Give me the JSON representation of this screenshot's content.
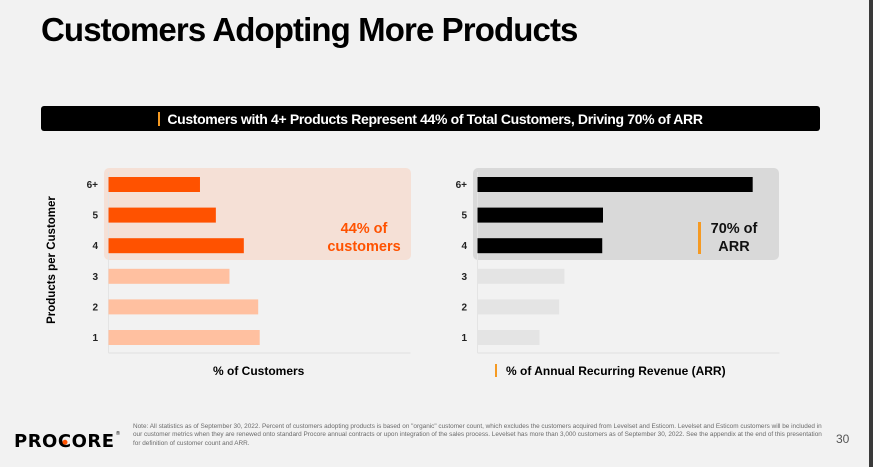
{
  "title": "Customers Adopting More Products",
  "banner": "Customers with 4+ Products Represent 44% of Total Customers, Driving 70% of ARR",
  "colors": {
    "orange": "#ff5200",
    "orange_light": "#ffc0a0",
    "orange_highlight_bg": "#f5e0d6",
    "black": "#000000",
    "gray_light": "#e4e4e4",
    "gray_highlight_bg": "#d9d9d9",
    "accent_yellow": "#f59a23"
  },
  "chart_data": [
    {
      "type": "bar",
      "orientation": "horizontal",
      "title": "% of Customers",
      "ylabel": "Products per Customer",
      "xlabel": "% of Customers",
      "categories": [
        "6+",
        "5",
        "4",
        "3",
        "2",
        "1"
      ],
      "values": [
        12.1,
        14.2,
        17.9,
        16.0,
        19.8,
        20.0
      ],
      "highlighted_categories": [
        "6+",
        "5",
        "4"
      ],
      "annotation": "44% of customers",
      "annotation_lines": [
        "44% of",
        "customers"
      ],
      "xlim": [
        0,
        40
      ],
      "grid": false
    },
    {
      "type": "bar",
      "orientation": "horizontal",
      "title": "% of Annual Recurring Revenue (ARR)",
      "ylabel": "Products per Customer",
      "xlabel": "% of Annual Recurring Revenue (ARR)",
      "categories": [
        "6+",
        "5",
        "4",
        "3",
        "2",
        "1"
      ],
      "values": [
        36.4,
        16.6,
        16.5,
        11.5,
        10.8,
        8.2
      ],
      "highlighted_categories": [
        "6+",
        "5",
        "4"
      ],
      "annotation": "70% of ARR",
      "annotation_lines": [
        "70% of",
        "ARR"
      ],
      "xlim": [
        0,
        40
      ],
      "grid": false
    }
  ],
  "footer": {
    "logo": "PROCORE",
    "logo_parts": [
      "PRO",
      "C",
      "ORE"
    ],
    "note": "Note: All statistics as of September 30, 2022. Percent of customers adopting products is based on \"organic\" customer count, which excludes the customers acquired from Levelset and Esticom. Levelset and Esticom customers will be included in our customer metrics when they are renewed onto standard Procore annual contracts or upon integration of the sales process. Levelset has more than 3,000 customers as of September 30, 2022. See the appendix at the end of this presentation for definition of customer count and ARR.",
    "page_number": "30"
  }
}
